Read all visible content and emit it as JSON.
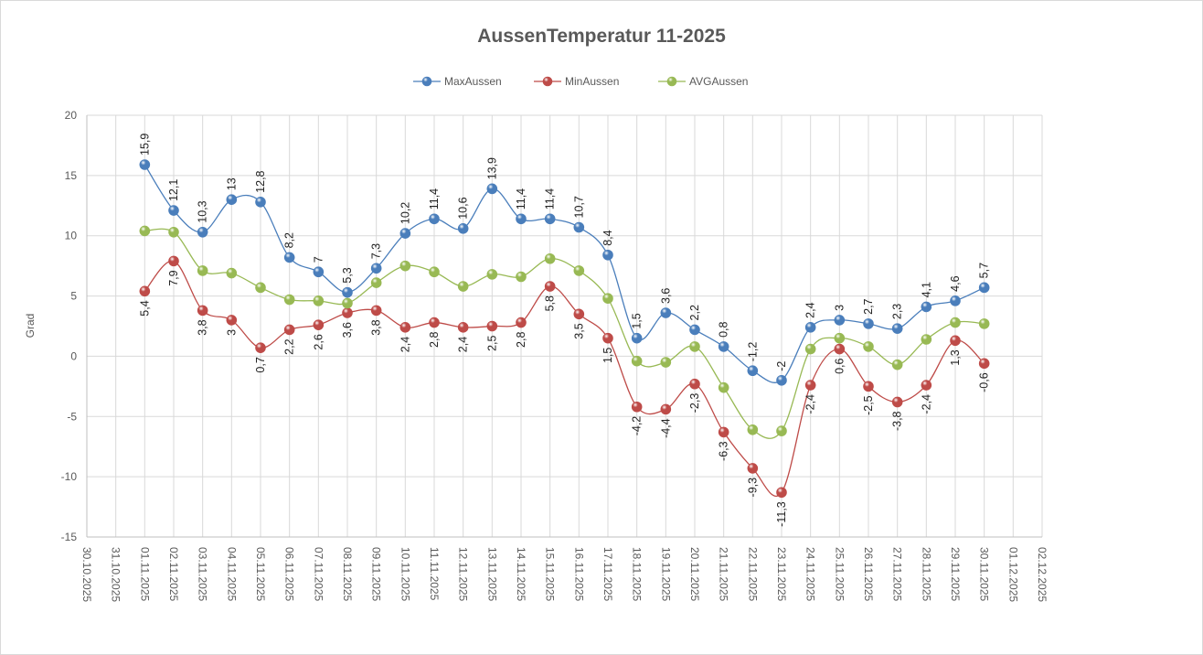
{
  "chart_data": {
    "type": "line",
    "title": "AussenTemperatur 11-2025",
    "ylabel": "Grad",
    "xlabel": "",
    "ylim": [
      -15,
      20
    ],
    "yticks": [
      -15,
      -10,
      -5,
      0,
      5,
      10,
      15,
      20
    ],
    "grid": true,
    "legend": "top",
    "smooth": true,
    "x_tick_labels": [
      "30.10.2025",
      "31.10.2025",
      "01.11.2025",
      "02.11.2025",
      "03.11.2025",
      "04.11.2025",
      "05.11.2025",
      "06.11.2025",
      "07.11.2025",
      "08.11.2025",
      "09.11.2025",
      "10.11.2025",
      "11.11.2025",
      "12.11.2025",
      "13.11.2025",
      "14.11.2025",
      "15.11.2025",
      "16.11.2025",
      "17.11.2025",
      "18.11.2025",
      "19.11.2025",
      "20.11.2025",
      "21.11.2025",
      "22.11.2025",
      "23.11.2025",
      "24.11.2025",
      "25.11.2025",
      "26.11.2025",
      "27.11.2025",
      "28.11.2025",
      "29.11.2025",
      "30.11.2025",
      "01.12.2025",
      "02.12.2025"
    ],
    "x": [
      "01.11.2025",
      "02.11.2025",
      "03.11.2025",
      "04.11.2025",
      "05.11.2025",
      "06.11.2025",
      "07.11.2025",
      "08.11.2025",
      "09.11.2025",
      "10.11.2025",
      "11.11.2025",
      "12.11.2025",
      "13.11.2025",
      "14.11.2025",
      "15.11.2025",
      "16.11.2025",
      "17.11.2025",
      "18.11.2025",
      "19.11.2025",
      "20.11.2025",
      "21.11.2025",
      "22.11.2025",
      "23.11.2025",
      "24.11.2025",
      "25.11.2025",
      "26.11.2025",
      "27.11.2025",
      "28.11.2025",
      "29.11.2025",
      "30.11.2025"
    ],
    "series": [
      {
        "name": "MaxAussen",
        "color": "#4a7ebb",
        "labels": "above",
        "values": [
          15.9,
          12.1,
          10.3,
          13,
          12.8,
          8.2,
          7,
          5.3,
          7.3,
          10.2,
          11.4,
          10.6,
          13.9,
          11.4,
          11.4,
          10.7,
          8.4,
          1.5,
          3.6,
          2.2,
          0.8,
          -1.2,
          -2,
          2.4,
          3,
          2.7,
          2.3,
          4.1,
          4.6,
          5.7
        ]
      },
      {
        "name": "MinAussen",
        "color": "#be4b48",
        "labels": "below",
        "values": [
          5.4,
          7.9,
          3.8,
          3,
          0.7,
          2.2,
          2.6,
          3.6,
          3.8,
          2.4,
          2.8,
          2.4,
          2.5,
          2.8,
          5.8,
          3.5,
          1.5,
          -4.2,
          -4.4,
          -2.3,
          -6.3,
          -9.3,
          -11.3,
          -2.4,
          0.6,
          -2.5,
          -3.8,
          -2.4,
          1.3,
          -0.6
        ]
      },
      {
        "name": "AVGAussen",
        "color": "#98b954",
        "labels": "none",
        "values": [
          10.4,
          10.3,
          7.1,
          6.9,
          5.7,
          4.7,
          4.6,
          4.4,
          6.1,
          7.5,
          7.0,
          5.8,
          6.8,
          6.6,
          8.1,
          7.1,
          4.8,
          -0.4,
          -0.5,
          0.8,
          -2.6,
          -6.1,
          -6.2,
          0.6,
          1.5,
          0.8,
          -0.7,
          1.4,
          2.8,
          2.7
        ]
      }
    ]
  }
}
